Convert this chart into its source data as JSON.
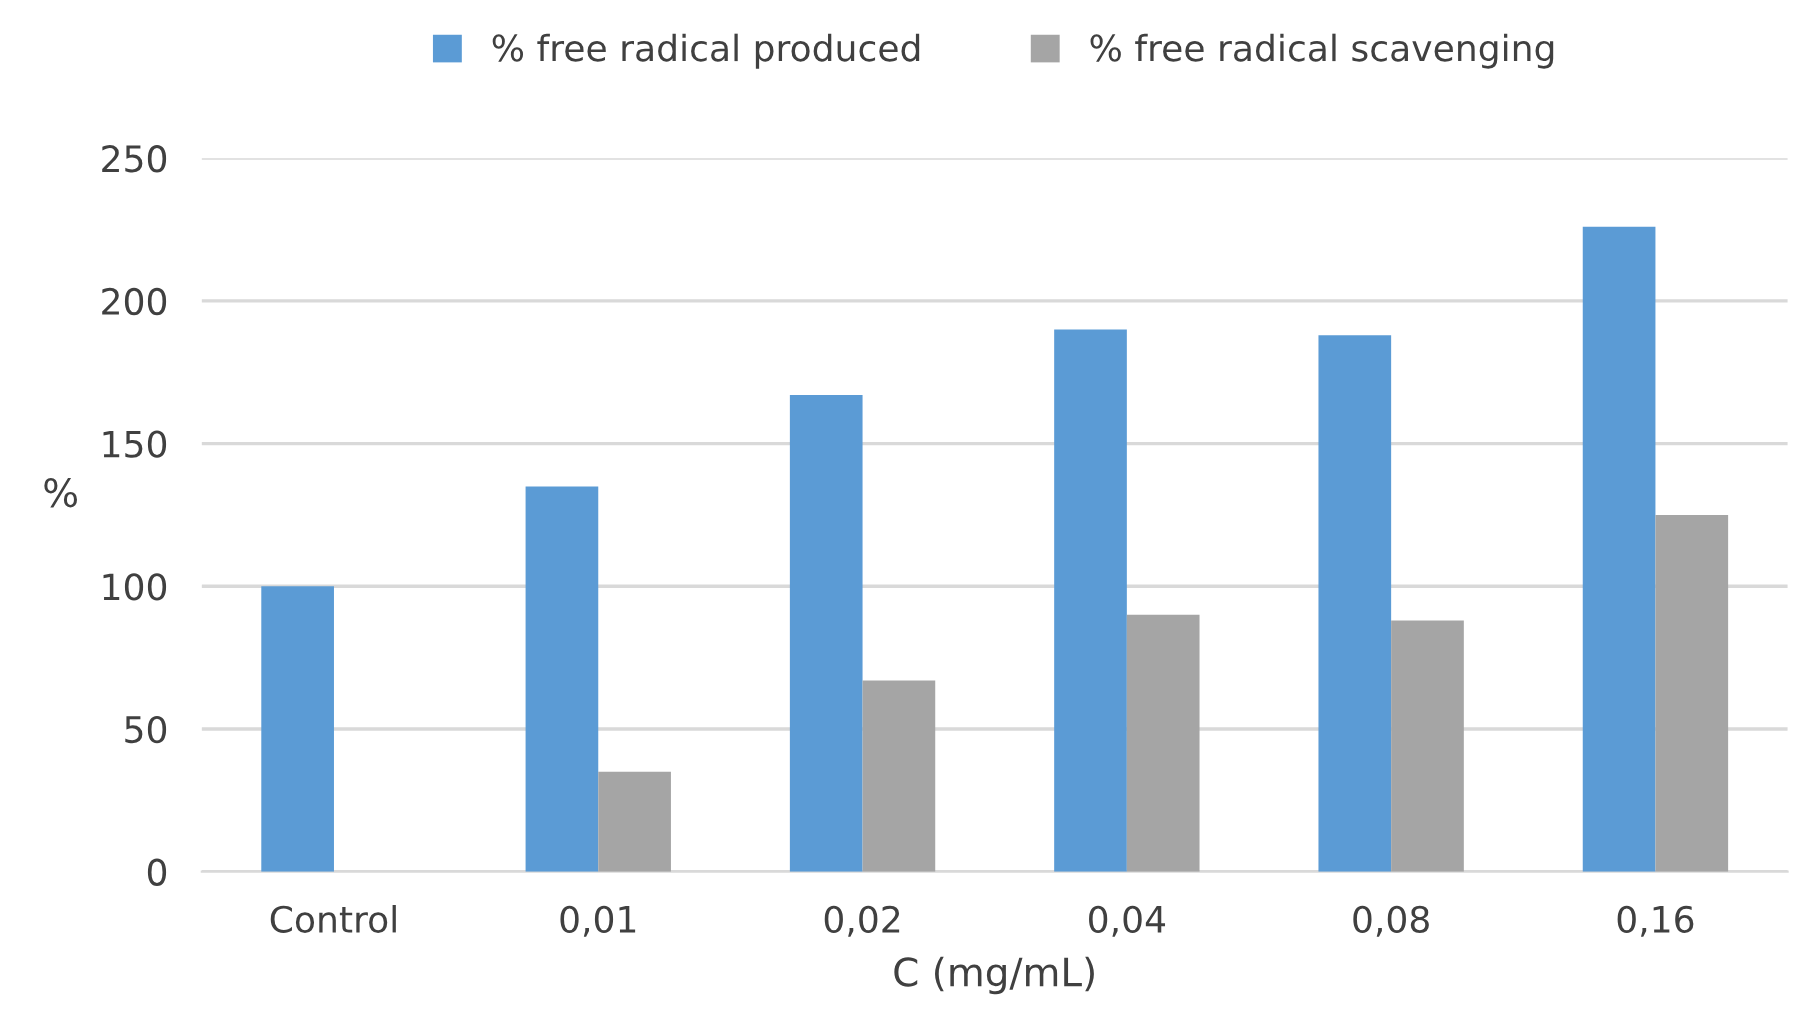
{
  "chart_data": {
    "type": "bar",
    "xlabel": "C (mg/mL)",
    "ylabel": "%",
    "categories": [
      "Control",
      "0,01",
      "0,02",
      "0,04",
      "0,08",
      "0,16"
    ],
    "series": [
      {
        "name": "% free radical produced",
        "color": "#5b9bd5",
        "values": [
          100,
          135,
          167,
          190,
          188,
          226
        ]
      },
      {
        "name": "% free radical scavenging",
        "color": "#a5a5a5",
        "values": [
          null,
          35,
          67,
          90,
          88,
          125
        ]
      }
    ],
    "ylim": [
      0,
      250
    ],
    "yticks": [
      0,
      50,
      100,
      150,
      200,
      250
    ],
    "grid": "y",
    "legend": "top"
  }
}
